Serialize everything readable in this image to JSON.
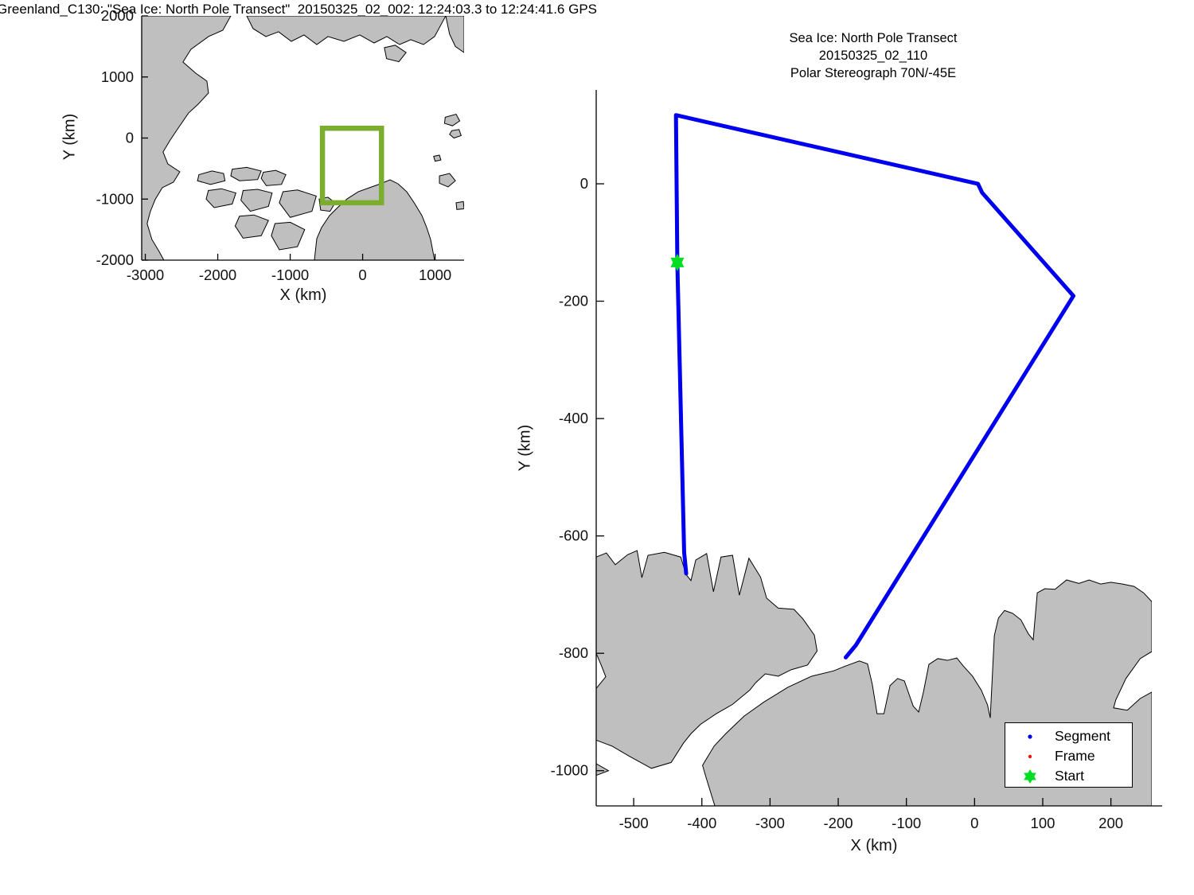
{
  "figure_title": "Greenland_C130: \"Sea Ice: North Pole Transect\"  20150325_02_002: 12:24:03.3 to 12:24:41.6 GPS",
  "colors": {
    "land": "#bfbfbf",
    "coast": "#000000",
    "segment_blue": "#0000ee",
    "frame_red": "#ee1111",
    "start_green": "#00dd22",
    "rect_green": "#7bad2e",
    "axis": "#000000",
    "text": "#111111"
  },
  "chart_data": [
    {
      "name": "overview-map",
      "type": "line",
      "title": "",
      "xlabel": "X (km)",
      "ylabel": "Y (km)",
      "xlim": [
        -3050,
        1400
      ],
      "ylim": [
        -2000,
        2000
      ],
      "xticks": [
        -3000,
        -2000,
        -1000,
        0,
        1000
      ],
      "yticks": [
        -2000,
        -1000,
        0,
        1000,
        2000
      ],
      "view_rect": {
        "x": [
          -555,
          260
        ],
        "y": [
          -1060,
          160
        ]
      },
      "land": [
        [
          [
            -1820,
            2000
          ],
          [
            -1930,
            1766
          ],
          [
            -2128,
            1662
          ],
          [
            -2370,
            1453
          ],
          [
            -2480,
            1244
          ],
          [
            -2304,
            1062
          ],
          [
            -2150,
            932
          ],
          [
            -2128,
            736
          ],
          [
            -2271,
            554
          ],
          [
            -2403,
            410
          ],
          [
            -2546,
            163
          ],
          [
            -2656,
            -33
          ],
          [
            -2755,
            -228
          ],
          [
            -2689,
            -424
          ],
          [
            -2524,
            -554
          ],
          [
            -2612,
            -723
          ],
          [
            -2766,
            -814
          ],
          [
            -2865,
            -1010
          ],
          [
            -2931,
            -1205
          ],
          [
            -2975,
            -1401
          ],
          [
            -2909,
            -1661
          ],
          [
            -2810,
            -1857
          ],
          [
            -2744,
            -2000
          ],
          [
            -3050,
            -2000
          ],
          [
            -3050,
            2000
          ]
        ],
        [
          [
            -1600,
            2000
          ],
          [
            -1512,
            1792
          ],
          [
            -1336,
            1662
          ],
          [
            -1161,
            1740
          ],
          [
            -985,
            1583
          ],
          [
            -809,
            1688
          ],
          [
            -633,
            1531
          ],
          [
            -479,
            1662
          ],
          [
            -259,
            1583
          ],
          [
            -40,
            1688
          ],
          [
            158,
            1557
          ],
          [
            334,
            1662
          ],
          [
            510,
            1531
          ],
          [
            664,
            1610
          ],
          [
            840,
            1531
          ],
          [
            993,
            1662
          ],
          [
            1147,
            2000
          ]
        ],
        [
          [
            1147,
            2000
          ],
          [
            1200,
            1700
          ],
          [
            1280,
            1500
          ],
          [
            1400,
            1400
          ],
          [
            1400,
            2000
          ]
        ],
        [
          [
            300,
            1480
          ],
          [
            450,
            1520
          ],
          [
            600,
            1400
          ],
          [
            500,
            1250
          ],
          [
            330,
            1300
          ]
        ],
        [
          [
            -666,
            -2000
          ],
          [
            -633,
            -1648
          ],
          [
            -567,
            -1466
          ],
          [
            -457,
            -1270
          ],
          [
            -347,
            -1140
          ],
          [
            -215,
            -997
          ],
          [
            -62,
            -880
          ],
          [
            92,
            -814
          ],
          [
            246,
            -749
          ],
          [
            378,
            -684
          ],
          [
            488,
            -749
          ],
          [
            609,
            -880
          ],
          [
            719,
            -1075
          ],
          [
            818,
            -1270
          ],
          [
            884,
            -1466
          ],
          [
            938,
            -1661
          ],
          [
            993,
            -2000
          ]
        ],
        [
          [
            -2260,
            -600
          ],
          [
            -2080,
            -540
          ],
          [
            -1920,
            -580
          ],
          [
            -1900,
            -700
          ],
          [
            -2100,
            -760
          ],
          [
            -2280,
            -700
          ]
        ],
        [
          [
            -1800,
            -510
          ],
          [
            -1600,
            -480
          ],
          [
            -1400,
            -540
          ],
          [
            -1450,
            -680
          ],
          [
            -1700,
            -700
          ],
          [
            -1820,
            -620
          ]
        ],
        [
          [
            -2130,
            -860
          ],
          [
            -1950,
            -830
          ],
          [
            -1750,
            -900
          ],
          [
            -1800,
            -1080
          ],
          [
            -2050,
            -1140
          ],
          [
            -2160,
            -1000
          ]
        ],
        [
          [
            -1650,
            -860
          ],
          [
            -1450,
            -840
          ],
          [
            -1250,
            -900
          ],
          [
            -1300,
            -1120
          ],
          [
            -1550,
            -1200
          ],
          [
            -1680,
            -1020
          ]
        ],
        [
          [
            -1370,
            -560
          ],
          [
            -1200,
            -530
          ],
          [
            -1060,
            -600
          ],
          [
            -1120,
            -760
          ],
          [
            -1330,
            -780
          ],
          [
            -1400,
            -660
          ]
        ],
        [
          [
            -1100,
            -880
          ],
          [
            -900,
            -850
          ],
          [
            -640,
            -950
          ],
          [
            -700,
            -1200
          ],
          [
            -1000,
            -1300
          ],
          [
            -1150,
            -1060
          ]
        ],
        [
          [
            -1700,
            -1280
          ],
          [
            -1500,
            -1260
          ],
          [
            -1300,
            -1350
          ],
          [
            -1400,
            -1600
          ],
          [
            -1650,
            -1640
          ],
          [
            -1760,
            -1440
          ]
        ],
        [
          [
            -1210,
            -1400
          ],
          [
            -1000,
            -1380
          ],
          [
            -800,
            -1500
          ],
          [
            -900,
            -1780
          ],
          [
            -1150,
            -1830
          ],
          [
            -1260,
            -1600
          ]
        ],
        [
          [
            -600,
            -1000
          ],
          [
            -480,
            -970
          ],
          [
            -380,
            -1060
          ],
          [
            -450,
            -1200
          ],
          [
            -580,
            -1180
          ]
        ],
        [
          [
            1140,
            340
          ],
          [
            1290,
            390
          ],
          [
            1340,
            280
          ],
          [
            1240,
            200
          ],
          [
            1130,
            240
          ]
        ],
        [
          [
            1230,
            120
          ],
          [
            1330,
            140
          ],
          [
            1360,
            40
          ],
          [
            1260,
            0
          ],
          [
            1200,
            60
          ]
        ],
        [
          [
            1060,
            -620
          ],
          [
            1200,
            -580
          ],
          [
            1280,
            -700
          ],
          [
            1180,
            -800
          ],
          [
            1060,
            -740
          ]
        ],
        [
          [
            1290,
            -1060
          ],
          [
            1390,
            -1040
          ],
          [
            1400,
            -1160
          ],
          [
            1300,
            -1170
          ]
        ],
        [
          [
            980,
            -300
          ],
          [
            1060,
            -280
          ],
          [
            1080,
            -360
          ],
          [
            1000,
            -380
          ]
        ]
      ]
    },
    {
      "name": "detail-track",
      "type": "line",
      "title_lines": [
        "Sea Ice: North Pole Transect",
        "20150325_02_110",
        "Polar Stereograph 70N/-45E"
      ],
      "xlabel": "X (km)",
      "ylabel": "Y (km)",
      "xlim": [
        -555,
        260
      ],
      "ylim": [
        -1060,
        160
      ],
      "xticks": [
        -500,
        -400,
        -300,
        -200,
        -100,
        0,
        100,
        200
      ],
      "yticks": [
        -1000,
        -800,
        -600,
        -400,
        -200,
        0
      ],
      "flight_path": [
        [
          -189,
          -807
        ],
        [
          -174,
          -786
        ],
        [
          145,
          -191
        ],
        [
          11,
          -15
        ],
        [
          5,
          0
        ],
        [
          -438,
          117
        ],
        [
          -436,
          -134
        ],
        [
          -430,
          -431
        ],
        [
          -426,
          -628
        ],
        [
          -423,
          -664
        ]
      ],
      "start_point": [
        -436,
        -134
      ],
      "land": [
        [
          [
            -555,
            -636
          ],
          [
            -540,
            -629
          ],
          [
            -527,
            -649
          ],
          [
            -509,
            -632
          ],
          [
            -495,
            -625
          ],
          [
            -488,
            -671
          ],
          [
            -479,
            -633
          ],
          [
            -455,
            -628
          ],
          [
            -431,
            -636
          ],
          [
            -423,
            -666
          ],
          [
            -416,
            -676
          ],
          [
            -409,
            -641
          ],
          [
            -393,
            -630
          ],
          [
            -383,
            -695
          ],
          [
            -372,
            -636
          ],
          [
            -355,
            -633
          ],
          [
            -345,
            -701
          ],
          [
            -331,
            -638
          ],
          [
            -314,
            -670
          ],
          [
            -305,
            -706
          ],
          [
            -288,
            -723
          ],
          [
            -265,
            -725
          ],
          [
            -252,
            -741
          ],
          [
            -235,
            -769
          ],
          [
            -231,
            -796
          ],
          [
            -245,
            -820
          ],
          [
            -269,
            -828
          ],
          [
            -288,
            -839
          ],
          [
            -307,
            -835
          ],
          [
            -321,
            -850
          ],
          [
            -330,
            -863
          ],
          [
            -355,
            -887
          ],
          [
            -379,
            -903
          ],
          [
            -402,
            -921
          ],
          [
            -416,
            -937
          ],
          [
            -427,
            -953
          ],
          [
            -445,
            -986
          ],
          [
            -474,
            -996
          ],
          [
            -507,
            -975
          ],
          [
            -532,
            -958
          ],
          [
            -555,
            -948
          ],
          [
            -555,
            -860
          ],
          [
            -541,
            -840
          ],
          [
            -547,
            -822
          ],
          [
            -555,
            -800
          ]
        ],
        [
          [
            -381,
            -1060
          ],
          [
            -394,
            -1011
          ],
          [
            -399,
            -991
          ],
          [
            -396,
            -985
          ],
          [
            -382,
            -958
          ],
          [
            -365,
            -937
          ],
          [
            -338,
            -907
          ],
          [
            -309,
            -883
          ],
          [
            -274,
            -858
          ],
          [
            -239,
            -839
          ],
          [
            -207,
            -830
          ],
          [
            -190,
            -822
          ],
          [
            -169,
            -813
          ],
          [
            -157,
            -818
          ],
          [
            -150,
            -853
          ],
          [
            -143,
            -903
          ],
          [
            -133,
            -903
          ],
          [
            -124,
            -855
          ],
          [
            -113,
            -843
          ],
          [
            -103,
            -847
          ],
          [
            -90,
            -890
          ],
          [
            -82,
            -900
          ],
          [
            -75,
            -866
          ],
          [
            -67,
            -819
          ],
          [
            -54,
            -809
          ],
          [
            -40,
            -812
          ],
          [
            -26,
            -808
          ],
          [
            -17,
            -821
          ],
          [
            -3,
            -839
          ],
          [
            10,
            -863
          ],
          [
            19,
            -888
          ],
          [
            23,
            -910
          ],
          [
            29,
            -770
          ],
          [
            35,
            -740
          ],
          [
            44,
            -727
          ],
          [
            56,
            -732
          ],
          [
            68,
            -743
          ],
          [
            79,
            -767
          ],
          [
            86,
            -777
          ],
          [
            92,
            -697
          ],
          [
            103,
            -690
          ],
          [
            118,
            -691
          ],
          [
            135,
            -675
          ],
          [
            153,
            -681
          ],
          [
            168,
            -675
          ],
          [
            185,
            -682
          ],
          [
            200,
            -679
          ],
          [
            217,
            -682
          ],
          [
            234,
            -686
          ],
          [
            248,
            -697
          ],
          [
            260,
            -712
          ],
          [
            260,
            -797
          ],
          [
            243,
            -809
          ],
          [
            222,
            -843
          ],
          [
            207,
            -880
          ],
          [
            204,
            -893
          ],
          [
            224,
            -897
          ],
          [
            243,
            -877
          ],
          [
            260,
            -866
          ],
          [
            260,
            -1060
          ]
        ],
        [
          [
            -555,
            -988
          ],
          [
            -537,
            -1000
          ],
          [
            -555,
            -1008
          ]
        ]
      ],
      "legend": [
        {
          "label": "Segment",
          "marker": "dot",
          "color": "#0000ee"
        },
        {
          "label": "Frame",
          "marker": "dot",
          "color": "#ee1111"
        },
        {
          "label": "Start",
          "marker": "hexagram",
          "color": "#00dd22"
        }
      ]
    }
  ]
}
